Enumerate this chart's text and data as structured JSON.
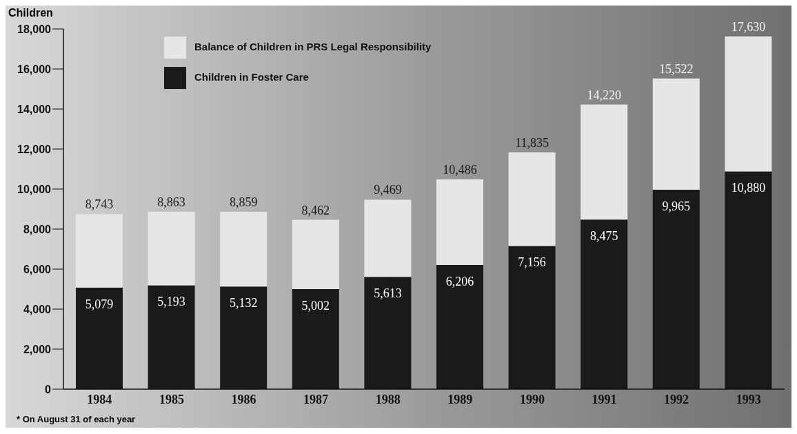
{
  "chart_data": {
    "type": "bar",
    "stacked": true,
    "ylabel": "Children",
    "categories": [
      "1984",
      "1985",
      "1986",
      "1987",
      "1988",
      "1989",
      "1990",
      "1991",
      "1992",
      "1993"
    ],
    "series": [
      {
        "name": "Children in Foster Care",
        "color": "#1a1a1a",
        "values": [
          5079,
          5193,
          5132,
          5002,
          5613,
          6206,
          7156,
          8475,
          9965,
          10880
        ],
        "value_labels": [
          "5,079",
          "5,193",
          "5,132",
          "5,002",
          "5,613",
          "6,206",
          "7,156",
          "8,475",
          "9,965",
          "10,880"
        ]
      },
      {
        "name": "Balance of Children in PRS Legal Responsibility",
        "color": "#e6e6e6",
        "values": [
          3664,
          3670,
          3727,
          3460,
          3856,
          4280,
          4679,
          5745,
          5557,
          6750
        ]
      }
    ],
    "totals": [
      "8,743",
      "8,863",
      "8,859",
      "8,462",
      "9,469",
      "10,486",
      "11,835",
      "14,220",
      "15,522",
      "17,630"
    ],
    "ylim": [
      0,
      18000
    ],
    "yticks": [
      {
        "value": 0,
        "label": "0"
      },
      {
        "value": 2000,
        "label": "2,000"
      },
      {
        "value": 4000,
        "label": "4,000"
      },
      {
        "value": 6000,
        "label": "6,000"
      },
      {
        "value": 8000,
        "label": "8,000"
      },
      {
        "value": 10000,
        "label": "10,000"
      },
      {
        "value": 12000,
        "label": "12,000"
      },
      {
        "value": 14000,
        "label": "14,000"
      },
      {
        "value": 16000,
        "label": "16,000"
      },
      {
        "value": 18000,
        "label": "18,000"
      }
    ],
    "grid": false,
    "legend": "top left",
    "annotations": [
      "* On August 31 of each year"
    ]
  }
}
